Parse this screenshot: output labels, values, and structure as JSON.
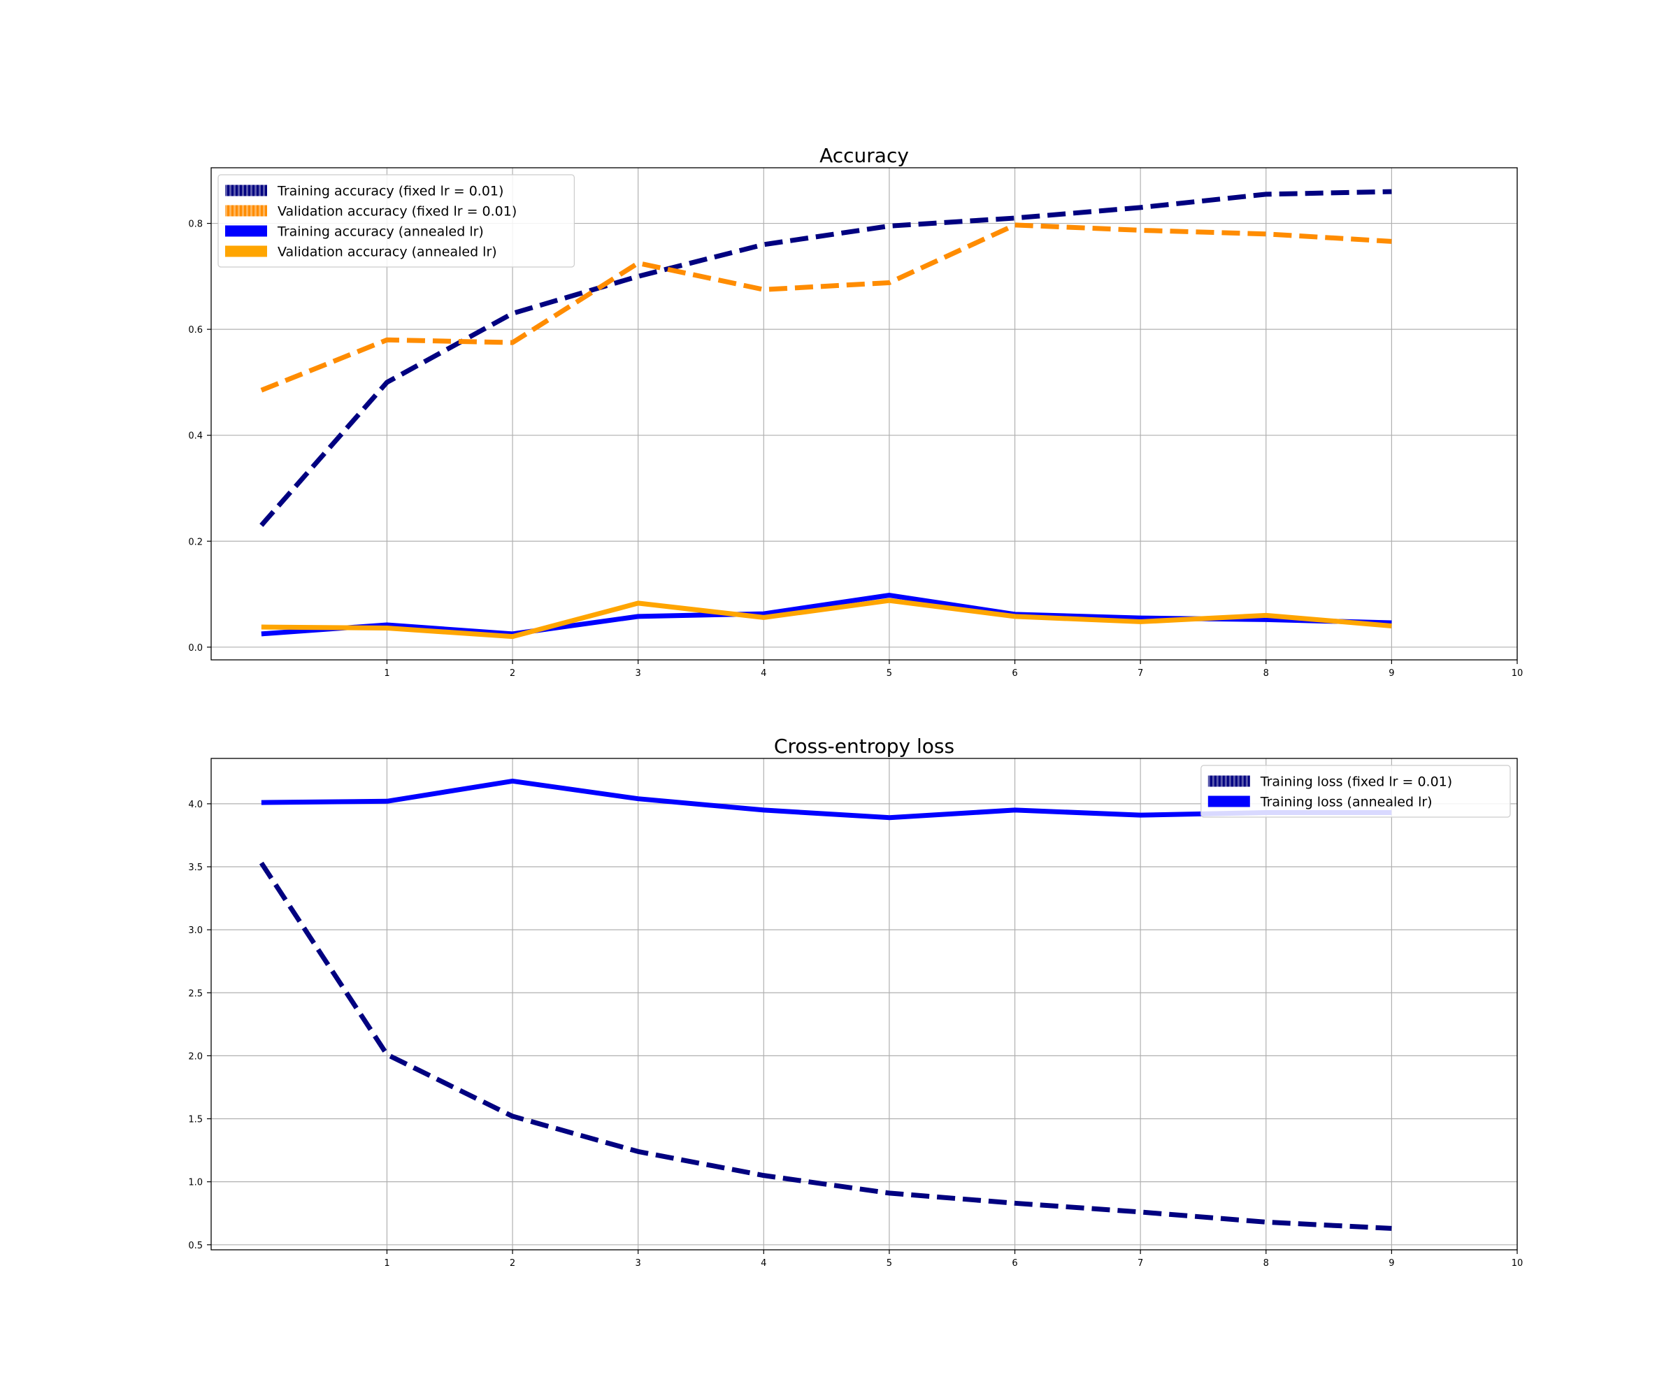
{
  "colors": {
    "navy": "#000080",
    "dark_orange": "#FF8C00",
    "blue": "#0000FF",
    "orange": "#FFA500",
    "grid": "#b0b0b0",
    "axis": "#000000",
    "legend_border": "#cccccc"
  },
  "chart_data": [
    {
      "type": "line",
      "title": "Accuracy",
      "xlabel": "",
      "ylabel": "",
      "xlim": [
        -0.4,
        10
      ],
      "ylim": [
        -0.024,
        0.905
      ],
      "x_ticks": [
        1,
        2,
        3,
        4,
        5,
        6,
        7,
        8,
        9,
        10
      ],
      "y_ticks": [
        0.0,
        0.2,
        0.4,
        0.6,
        0.8
      ],
      "x_tick_labels": [
        "1",
        "2",
        "3",
        "4",
        "5",
        "6",
        "7",
        "8",
        "9",
        "10"
      ],
      "y_tick_labels": [
        "0.0",
        "0.2",
        "0.4",
        "0.6",
        "0.8"
      ],
      "grid": true,
      "legend_position": "upper-left",
      "x": [
        0,
        1,
        2,
        3,
        4,
        5,
        6,
        7,
        8,
        9
      ],
      "series": [
        {
          "name": "Training accuracy (fixed lr = 0.01)",
          "color": "navy",
          "style": "dashed",
          "values": [
            0.23,
            0.5,
            0.63,
            0.7,
            0.76,
            0.795,
            0.81,
            0.83,
            0.855,
            0.86
          ]
        },
        {
          "name": "Validation accuracy (fixed lr = 0.01)",
          "color": "dark_orange",
          "style": "dashed",
          "values": [
            0.485,
            0.58,
            0.575,
            0.725,
            0.675,
            0.688,
            0.797,
            0.787,
            0.78,
            0.766
          ]
        },
        {
          "name": "Training accuracy (annealed lr)",
          "color": "blue",
          "style": "solid",
          "values": [
            0.025,
            0.042,
            0.025,
            0.058,
            0.063,
            0.098,
            0.062,
            0.055,
            0.052,
            0.046
          ]
        },
        {
          "name": "Validation accuracy (annealed lr)",
          "color": "orange",
          "style": "solid",
          "values": [
            0.038,
            0.036,
            0.02,
            0.083,
            0.056,
            0.088,
            0.058,
            0.048,
            0.06,
            0.04
          ]
        }
      ]
    },
    {
      "type": "line",
      "title": "Cross-entropy loss",
      "xlabel": "",
      "ylabel": "",
      "xlim": [
        -0.4,
        10
      ],
      "ylim": [
        0.46,
        4.36
      ],
      "x_ticks": [
        1,
        2,
        3,
        4,
        5,
        6,
        7,
        8,
        9,
        10
      ],
      "y_ticks": [
        0.5,
        1.0,
        1.5,
        2.0,
        2.5,
        3.0,
        3.5,
        4.0
      ],
      "x_tick_labels": [
        "1",
        "2",
        "3",
        "4",
        "5",
        "6",
        "7",
        "8",
        "9",
        "10"
      ],
      "y_tick_labels": [
        "0.5",
        "1.0",
        "1.5",
        "2.0",
        "2.5",
        "3.0",
        "3.5",
        "4.0"
      ],
      "grid": true,
      "legend_position": "upper-right",
      "x": [
        0,
        1,
        2,
        3,
        4,
        5,
        6,
        7,
        8,
        9
      ],
      "series": [
        {
          "name": "Training loss (fixed lr = 0.01)",
          "color": "navy",
          "style": "dashed",
          "values": [
            3.53,
            2.01,
            1.52,
            1.24,
            1.05,
            0.91,
            0.83,
            0.76,
            0.68,
            0.63
          ]
        },
        {
          "name": "Training loss (annealed lr)",
          "color": "blue",
          "style": "solid",
          "values": [
            4.01,
            4.02,
            4.18,
            4.04,
            3.95,
            3.89,
            3.95,
            3.91,
            3.93,
            3.93
          ]
        }
      ]
    }
  ]
}
